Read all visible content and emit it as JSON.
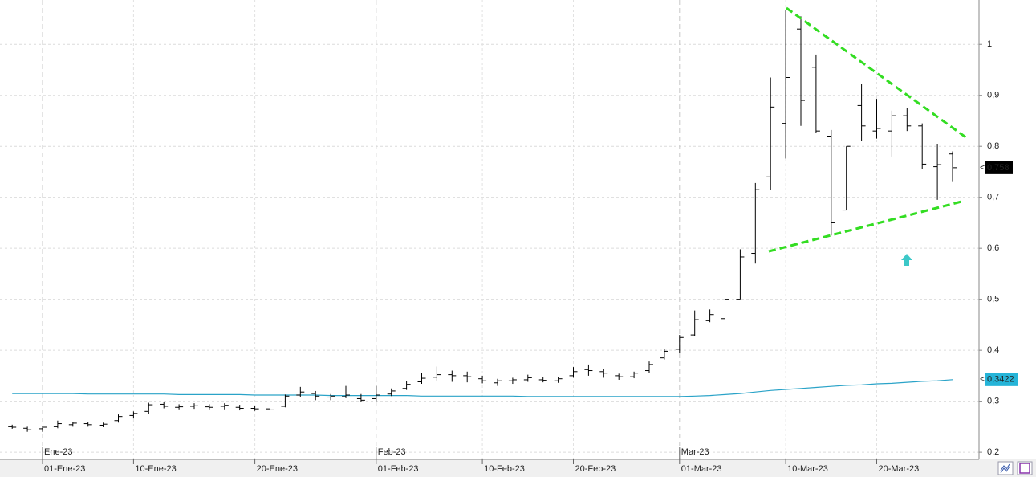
{
  "chart_data": {
    "type": "ohlc",
    "categories": [
      null,
      null,
      "01-Ene-23",
      null,
      null,
      null,
      null,
      null,
      "10-Ene-23",
      null,
      null,
      null,
      null,
      null,
      null,
      null,
      "20-Ene-23",
      null,
      null,
      null,
      null,
      null,
      null,
      null,
      "01-Feb-23",
      null,
      null,
      null,
      null,
      null,
      null,
      "10-Feb-23",
      null,
      null,
      null,
      null,
      null,
      "20-Feb-23",
      null,
      null,
      null,
      null,
      null,
      null,
      "01-Mar-23",
      null,
      null,
      null,
      null,
      null,
      null,
      "10-Mar-23",
      null,
      null,
      null,
      null,
      null,
      "20-Mar-23",
      null,
      null,
      null,
      null,
      null
    ],
    "month_labels": [
      "Ene-23",
      "Feb-23",
      "Mar-23"
    ],
    "open": [
      0.25,
      0.247,
      0.246,
      0.25,
      0.254,
      0.256,
      0.253,
      0.262,
      0.272,
      0.28,
      0.294,
      0.288,
      0.29,
      0.289,
      0.29,
      0.288,
      0.286,
      0.285,
      0.29,
      0.312,
      0.315,
      0.308,
      0.309,
      0.305,
      0.305,
      0.314,
      0.325,
      0.338,
      0.347,
      0.352,
      0.35,
      0.344,
      0.336,
      0.34,
      0.342,
      0.342,
      0.34,
      0.35,
      0.362,
      0.358,
      0.35,
      0.348,
      0.36,
      0.385,
      0.402,
      0.43,
      0.458,
      0.462,
      0.5,
      0.59,
      0.74,
      0.845,
      1.03,
      0.955,
      0.82,
      0.675,
      0.88,
      0.83,
      0.83,
      0.86,
      0.84,
      0.76,
      0.785
    ],
    "high": [
      0.254,
      0.25,
      0.252,
      0.262,
      0.26,
      0.259,
      0.258,
      0.274,
      0.28,
      0.297,
      0.298,
      0.294,
      0.296,
      0.294,
      0.296,
      0.293,
      0.29,
      0.288,
      0.313,
      0.328,
      0.32,
      0.314,
      0.33,
      0.314,
      0.33,
      0.325,
      0.34,
      0.355,
      0.368,
      0.36,
      0.358,
      0.35,
      0.344,
      0.346,
      0.352,
      0.348,
      0.347,
      0.367,
      0.372,
      0.363,
      0.354,
      0.358,
      0.378,
      0.403,
      0.43,
      0.478,
      0.48,
      0.505,
      0.598,
      0.728,
      0.935,
      1.068,
      1.055,
      0.98,
      0.832,
      0.8,
      0.923,
      0.893,
      0.87,
      0.875,
      0.845,
      0.805,
      0.79
    ],
    "low": [
      0.246,
      0.24,
      0.24,
      0.247,
      0.25,
      0.25,
      0.249,
      0.258,
      0.266,
      0.275,
      0.286,
      0.284,
      0.285,
      0.284,
      0.284,
      0.282,
      0.281,
      0.279,
      0.288,
      0.308,
      0.302,
      0.302,
      0.306,
      0.299,
      0.3,
      0.31,
      0.322,
      0.334,
      0.34,
      0.338,
      0.337,
      0.335,
      0.33,
      0.334,
      0.338,
      0.337,
      0.336,
      0.346,
      0.35,
      0.346,
      0.342,
      0.345,
      0.356,
      0.382,
      0.395,
      0.428,
      0.455,
      0.458,
      0.5,
      0.57,
      0.715,
      0.776,
      0.84,
      0.827,
      0.625,
      0.675,
      0.81,
      0.815,
      0.78,
      0.83,
      0.755,
      0.695,
      0.73
    ],
    "close": [
      0.249,
      0.244,
      0.249,
      0.256,
      0.257,
      0.254,
      0.255,
      0.27,
      0.276,
      0.293,
      0.29,
      0.289,
      0.291,
      0.288,
      0.292,
      0.286,
      0.285,
      0.283,
      0.31,
      0.318,
      0.31,
      0.31,
      0.312,
      0.302,
      0.312,
      0.32,
      0.333,
      0.345,
      0.352,
      0.35,
      0.348,
      0.34,
      0.34,
      0.342,
      0.346,
      0.341,
      0.344,
      0.358,
      0.36,
      0.355,
      0.348,
      0.355,
      0.372,
      0.398,
      0.425,
      0.46,
      0.47,
      0.5,
      0.583,
      0.715,
      0.877,
      0.935,
      0.89,
      0.83,
      0.65,
      0.8,
      0.84,
      0.835,
      0.86,
      0.84,
      0.765,
      0.764,
      0.758
    ],
    "close_label": "0,758",
    "color": "#000000",
    "moving_average": {
      "color": "#2aa3c8",
      "label_color": "#25b4d8",
      "last_label": "0,3422",
      "values": [
        0.315,
        0.315,
        0.315,
        0.315,
        0.315,
        0.314,
        0.314,
        0.314,
        0.314,
        0.314,
        0.314,
        0.313,
        0.313,
        0.313,
        0.313,
        0.313,
        0.312,
        0.312,
        0.312,
        0.312,
        0.312,
        0.311,
        0.311,
        0.311,
        0.311,
        0.311,
        0.311,
        0.31,
        0.31,
        0.31,
        0.31,
        0.31,
        0.31,
        0.31,
        0.309,
        0.309,
        0.309,
        0.309,
        0.309,
        0.309,
        0.309,
        0.309,
        0.309,
        0.309,
        0.309,
        0.31,
        0.311,
        0.313,
        0.315,
        0.318,
        0.321,
        0.323,
        0.325,
        0.327,
        0.329,
        0.331,
        0.332,
        0.334,
        0.335,
        0.337,
        0.339,
        0.34,
        0.3422
      ]
    },
    "ylim": [
      0.186,
      1.087
    ],
    "yticks": [
      {
        "value": 0.2,
        "label": "0,2"
      },
      {
        "value": 0.3,
        "label": "0,3"
      },
      {
        "value": 0.4,
        "label": "0,4"
      },
      {
        "value": 0.5,
        "label": "0,5"
      },
      {
        "value": 0.6,
        "label": "0,6"
      },
      {
        "value": 0.7,
        "label": "0,7"
      },
      {
        "value": 0.8,
        "label": "0,8"
      },
      {
        "value": 0.9,
        "label": "0,9"
      },
      1
    ],
    "grid": true
  }
}
